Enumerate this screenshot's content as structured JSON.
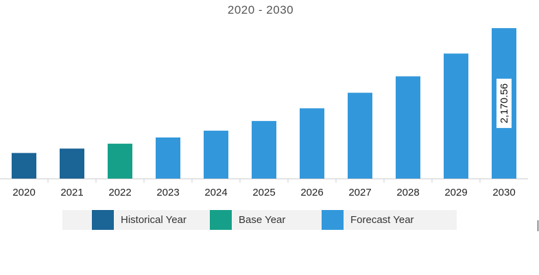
{
  "chart_data": {
    "type": "bar",
    "title": "2020 - 2030",
    "xlabel": "",
    "ylabel": "",
    "categories": [
      "2020",
      "2021",
      "2022",
      "2023",
      "2024",
      "2025",
      "2026",
      "2027",
      "2028",
      "2029",
      "2030"
    ],
    "values": [
      369.0,
      432.4,
      502.8,
      592.6,
      690.8,
      830.5,
      1013.6,
      1238.2,
      1475.1,
      1803.6,
      2170.56
    ],
    "ylim": [
      0,
      2300
    ],
    "point_kind": [
      "historical",
      "historical",
      "base",
      "forecast",
      "forecast",
      "forecast",
      "forecast",
      "forecast",
      "forecast",
      "forecast",
      "forecast"
    ],
    "data_labels": [
      {
        "category": "2030",
        "text": "2,170.56"
      }
    ],
    "grid": false,
    "legend_placement": "bottom"
  },
  "colors": {
    "historical": "#1a6496",
    "base": "#16a08a",
    "forecast": "#3398db",
    "axis": "#cccccc"
  },
  "legend": {
    "items": [
      {
        "key": "historical",
        "label": "Historical Year"
      },
      {
        "key": "base",
        "label": "Base Year"
      },
      {
        "key": "forecast",
        "label": "Forecast Year"
      }
    ]
  }
}
